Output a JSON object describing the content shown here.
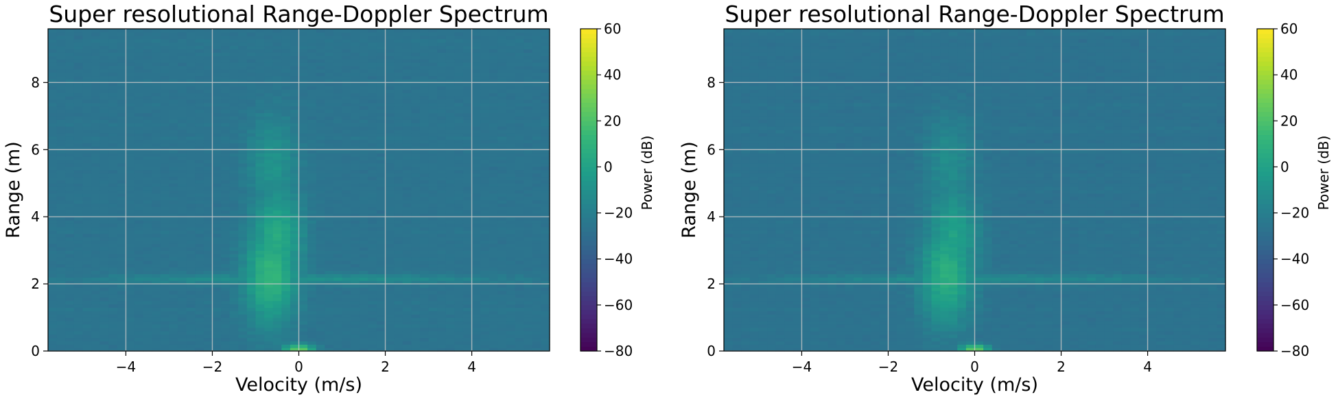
{
  "chart_data": [
    {
      "type": "heatmap",
      "title": "Super resolutional Range-Doppler Spectrum",
      "xlabel": "Velocity (m/s)",
      "ylabel": "Range (m)",
      "xlim": [
        -5.8,
        5.8
      ],
      "ylim": [
        0,
        9.6
      ],
      "xticks": [
        -4,
        -2,
        0,
        2,
        4
      ],
      "xtick_labels": [
        "−4",
        "−2",
        "0",
        "2",
        "4"
      ],
      "yticks": [
        0,
        2,
        4,
        6,
        8
      ],
      "ytick_labels": [
        "0",
        "2",
        "4",
        "6",
        "8"
      ],
      "grid": true,
      "colormap": "viridis",
      "colorbar": {
        "label": "Power (dB)",
        "range": [
          -80,
          60
        ],
        "ticks": [
          -80,
          -60,
          -40,
          -20,
          0,
          20,
          40,
          60
        ],
        "tick_labels": [
          "−80",
          "−60",
          "−40",
          "−20",
          "0",
          "20",
          "40",
          "60"
        ]
      },
      "background_power_db": -28,
      "hotspots": [
        {
          "velocity": -0.65,
          "range": 2.3,
          "power_db": 12
        },
        {
          "velocity": -0.5,
          "range": 3.4,
          "power_db": 5
        },
        {
          "velocity": -0.6,
          "range": 5.6,
          "power_db": -8
        },
        {
          "velocity": 0.0,
          "range": 0.05,
          "power_db": 28
        },
        {
          "velocity": 0.0,
          "range": 2.15,
          "power_db": -10
        }
      ]
    },
    {
      "type": "heatmap",
      "title": "Super resolutional Range-Doppler Spectrum",
      "xlabel": "Velocity (m/s)",
      "ylabel": "Range (m)",
      "xlim": [
        -5.8,
        5.8
      ],
      "ylim": [
        0,
        9.6
      ],
      "xticks": [
        -4,
        -2,
        0,
        2,
        4
      ],
      "xtick_labels": [
        "−4",
        "−2",
        "0",
        "2",
        "4"
      ],
      "yticks": [
        0,
        2,
        4,
        6,
        8
      ],
      "ytick_labels": [
        "0",
        "2",
        "4",
        "6",
        "8"
      ],
      "grid": true,
      "colormap": "viridis",
      "colorbar": {
        "label": "Power (dB)",
        "range": [
          -80,
          60
        ],
        "ticks": [
          -80,
          -60,
          -40,
          -20,
          0,
          20,
          40,
          60
        ],
        "tick_labels": [
          "−80",
          "−60",
          "−40",
          "−20",
          "0",
          "20",
          "40",
          "60"
        ]
      },
      "background_power_db": -29,
      "hotspots": [
        {
          "velocity": -0.65,
          "range": 2.3,
          "power_db": 8
        },
        {
          "velocity": -0.5,
          "range": 3.4,
          "power_db": 0
        },
        {
          "velocity": -0.6,
          "range": 5.6,
          "power_db": -12
        },
        {
          "velocity": 0.0,
          "range": 0.05,
          "power_db": 26
        },
        {
          "velocity": 0.0,
          "range": 2.15,
          "power_db": -12
        }
      ]
    }
  ]
}
